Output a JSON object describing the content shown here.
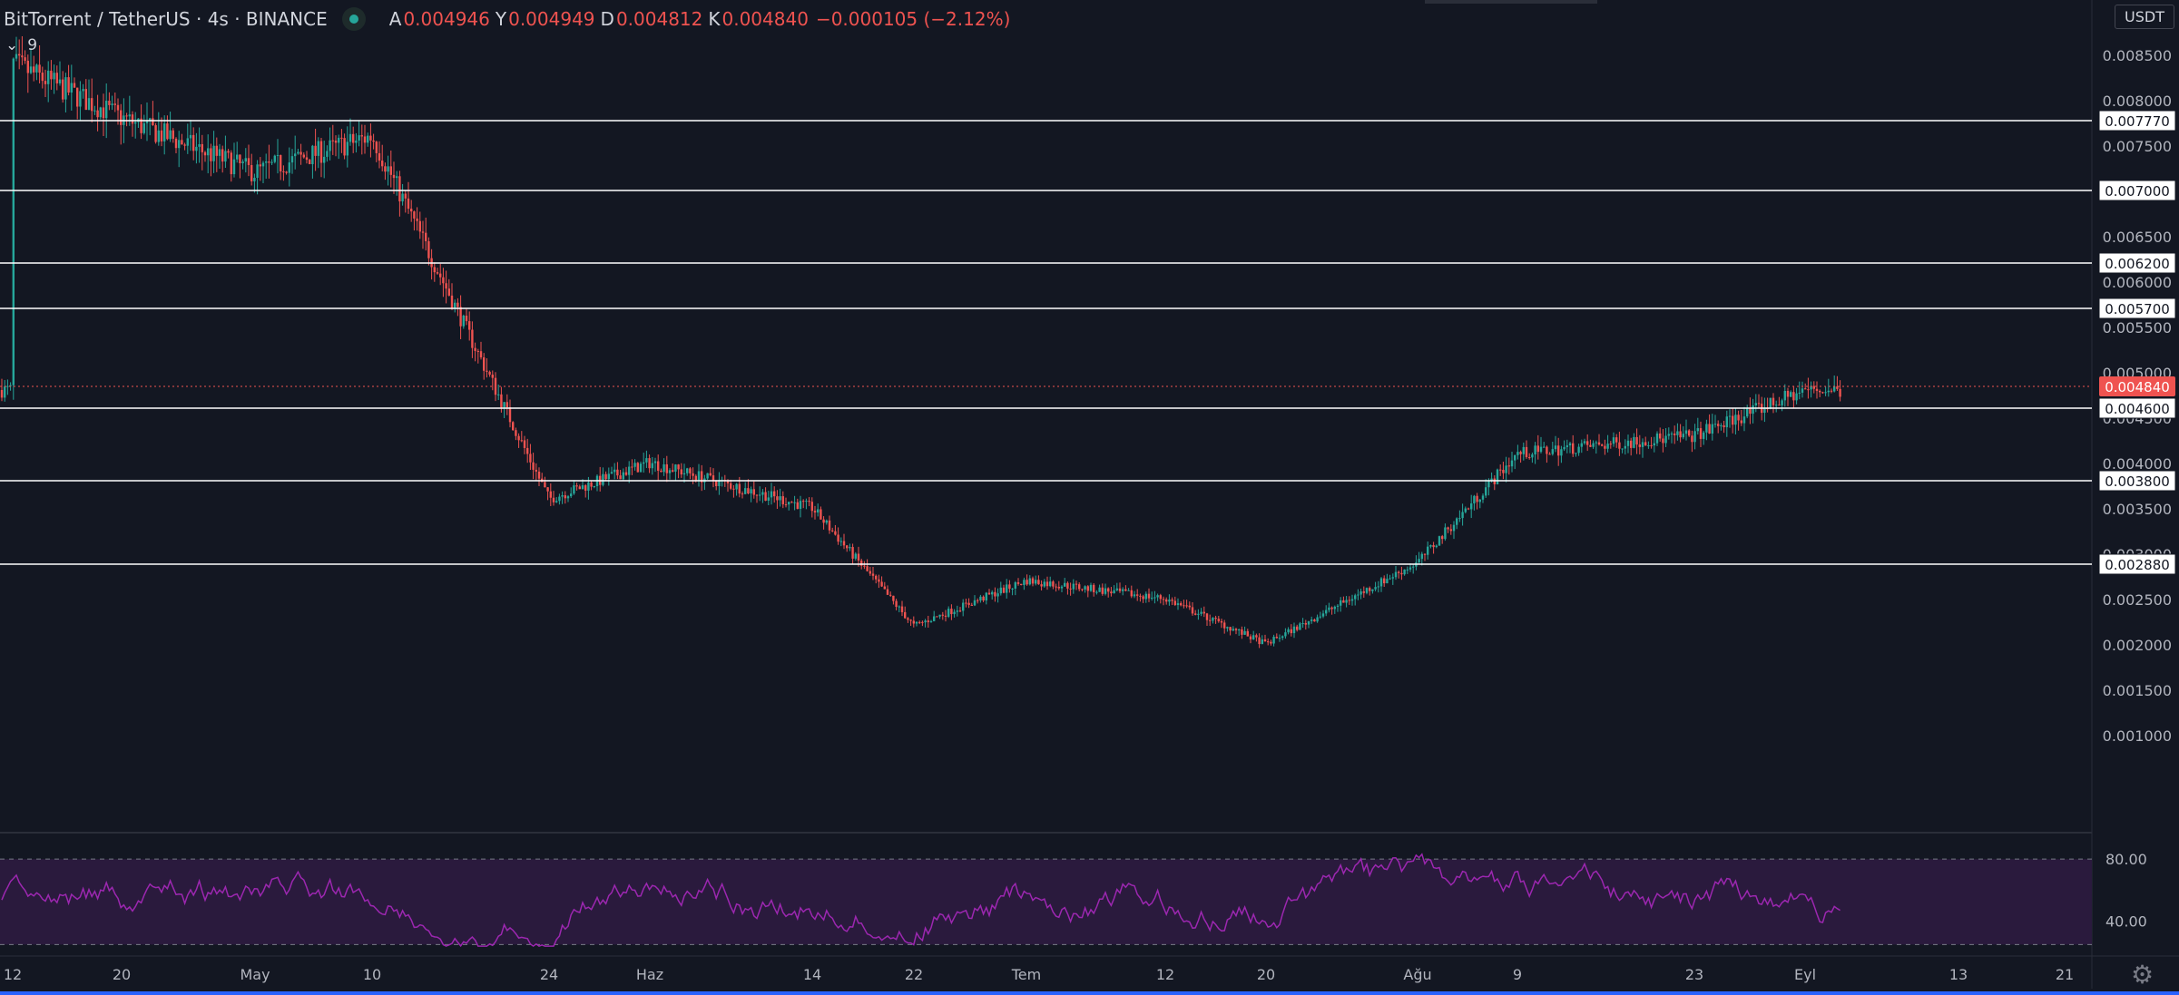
{
  "header": {
    "symbol": "BitTorrent / TetherUS",
    "interval": "4s",
    "exchange": "BINANCE",
    "ohlc": [
      {
        "k": "A",
        "v": "0.004946"
      },
      {
        "k": "Y",
        "v": "0.004949"
      },
      {
        "k": "D",
        "v": "0.004812"
      },
      {
        "k": "K",
        "v": "0.004840"
      },
      {
        "k": "",
        "v": "−0.000105 (−2.12%)"
      }
    ],
    "study_count": "9"
  },
  "unit_badge": "USDT",
  "colors": {
    "background": "#131722",
    "up": "#26a69a",
    "down": "#ef5350",
    "rsi": "#9c27b0",
    "rsi_band": "#2a1a3d",
    "level": "#ffffff"
  },
  "chart_data": {
    "type": "candlestick",
    "price_axis": {
      "min": 0.0005,
      "max": 0.0088,
      "ticks": [
        "0.001000",
        "0.001500",
        "0.002000",
        "0.002500",
        "0.003000",
        "0.003500",
        "0.004000",
        "0.004500",
        "0.005000",
        "0.005500",
        "0.006000",
        "0.006500",
        "0.007000",
        "0.007500",
        "0.008000",
        "0.008500"
      ]
    },
    "time_axis": {
      "labels": [
        "12",
        "20",
        "May",
        "10",
        "24",
        "Haz",
        "14",
        "22",
        "Tem",
        "12",
        "20",
        "Ağu",
        "9",
        "23",
        "Eyl",
        "13",
        "21"
      ]
    },
    "horizontal_levels": [
      "0.007770",
      "0.007000",
      "0.006200",
      "0.005700",
      "0.004600",
      "0.003800",
      "0.002880"
    ],
    "current_price": "0.004840",
    "path": [
      [
        "12",
        0.0084
      ],
      [
        "20",
        0.0078
      ],
      [
        "May",
        0.0072
      ],
      [
        "10",
        0.0076
      ],
      [
        "24",
        0.0036
      ],
      [
        "Haz",
        0.004
      ],
      [
        "14",
        0.0035
      ],
      [
        "22",
        0.0022
      ],
      [
        "Tem",
        0.0027
      ],
      [
        "12",
        0.0025
      ],
      [
        "20",
        0.002
      ],
      [
        "Ağu",
        0.0029
      ],
      [
        "9",
        0.0041
      ],
      [
        "23",
        0.0043
      ],
      [
        "Eyl",
        0.0048
      ]
    ],
    "rsi": {
      "upper": "80.00",
      "lower": "40.00",
      "labels": [
        "80.00",
        "40.00"
      ]
    }
  }
}
